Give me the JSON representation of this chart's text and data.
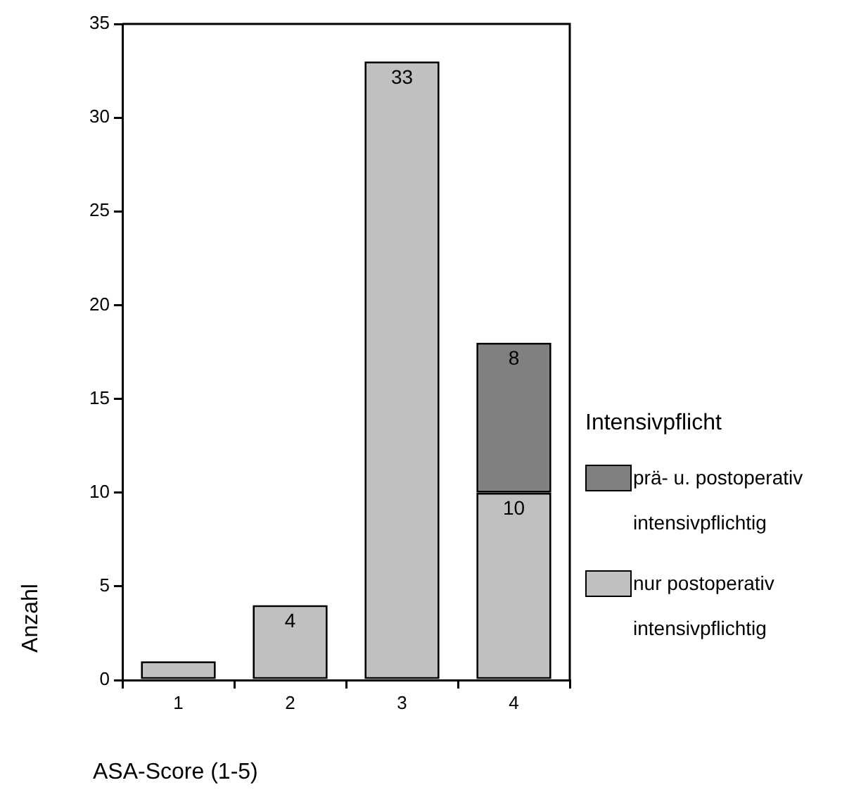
{
  "chart_data": {
    "type": "bar",
    "xlabel": "ASA-Score (1-5)",
    "ylabel": "Anzahl",
    "legend_title": "Intensivpflicht",
    "categories": [
      "1",
      "2",
      "3",
      "4"
    ],
    "series": [
      {
        "name": "nur postoperativ intensivpflichtig",
        "color": "#c0c0c0",
        "values": [
          1,
          4,
          33,
          10
        ],
        "value_labels": [
          null,
          "4",
          "33",
          "10"
        ]
      },
      {
        "name": "prä- u. postoperativ intensivpflichtig",
        "color": "#808080",
        "values": [
          null,
          null,
          null,
          8
        ],
        "value_labels": [
          null,
          null,
          null,
          "8"
        ]
      }
    ],
    "stacked": true,
    "ylim": [
      0,
      35
    ],
    "yticks": [
      0,
      5,
      10,
      15,
      20,
      25,
      30,
      35
    ],
    "grid": false,
    "legend": "right"
  }
}
